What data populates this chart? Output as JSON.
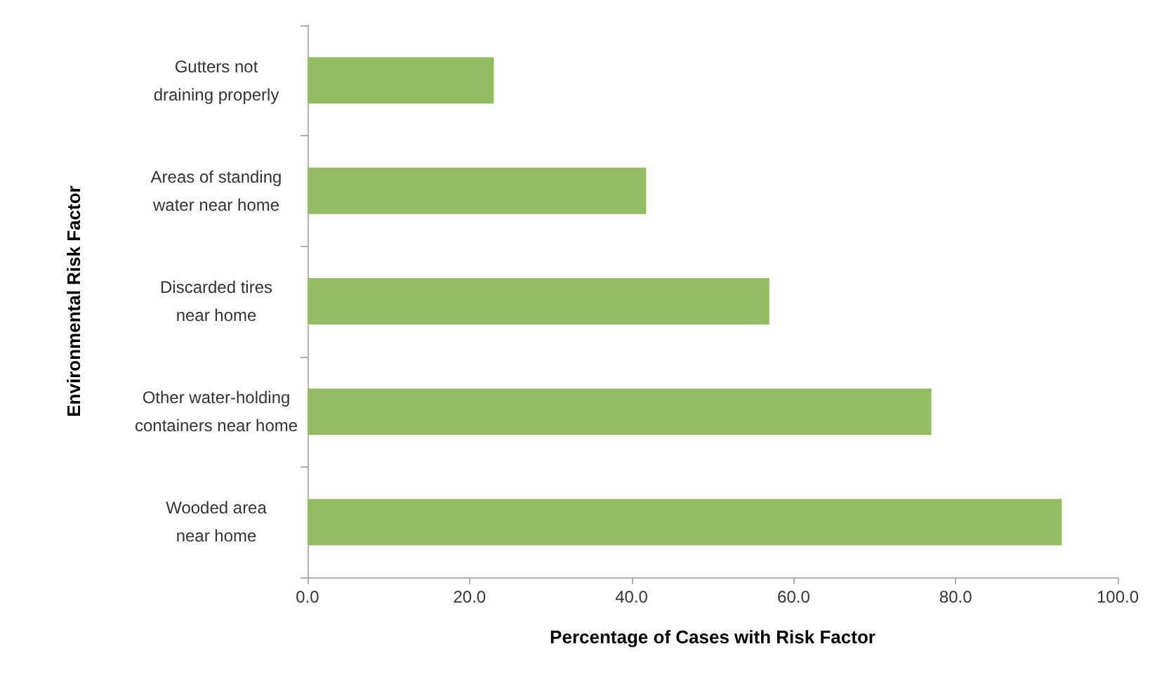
{
  "chart_data": {
    "type": "bar",
    "orientation": "horizontal",
    "xlabel": "Percentage of Cases with Risk Factor",
    "ylabel": "Environmental Risk Factor",
    "categories": [
      "Gutters not\ndraining properly",
      "Areas of standing\nwater near home",
      "Discarded tires\nnear home",
      "Other water-holding\ncontainers near home",
      "Wooded area\nnear home"
    ],
    "values": [
      23.0,
      41.8,
      57.0,
      77.0,
      93.1
    ],
    "color": "#93bb62",
    "xlim": [
      0,
      100
    ],
    "xticks": [
      {
        "value": 0,
        "label": "0.0"
      },
      {
        "value": 20,
        "label": "20.0"
      },
      {
        "value": 40,
        "label": "40.0"
      },
      {
        "value": 60,
        "label": "60.0"
      },
      {
        "value": 80,
        "label": "80.0"
      },
      {
        "value": 100,
        "label": "100.0"
      }
    ],
    "grid": false
  }
}
